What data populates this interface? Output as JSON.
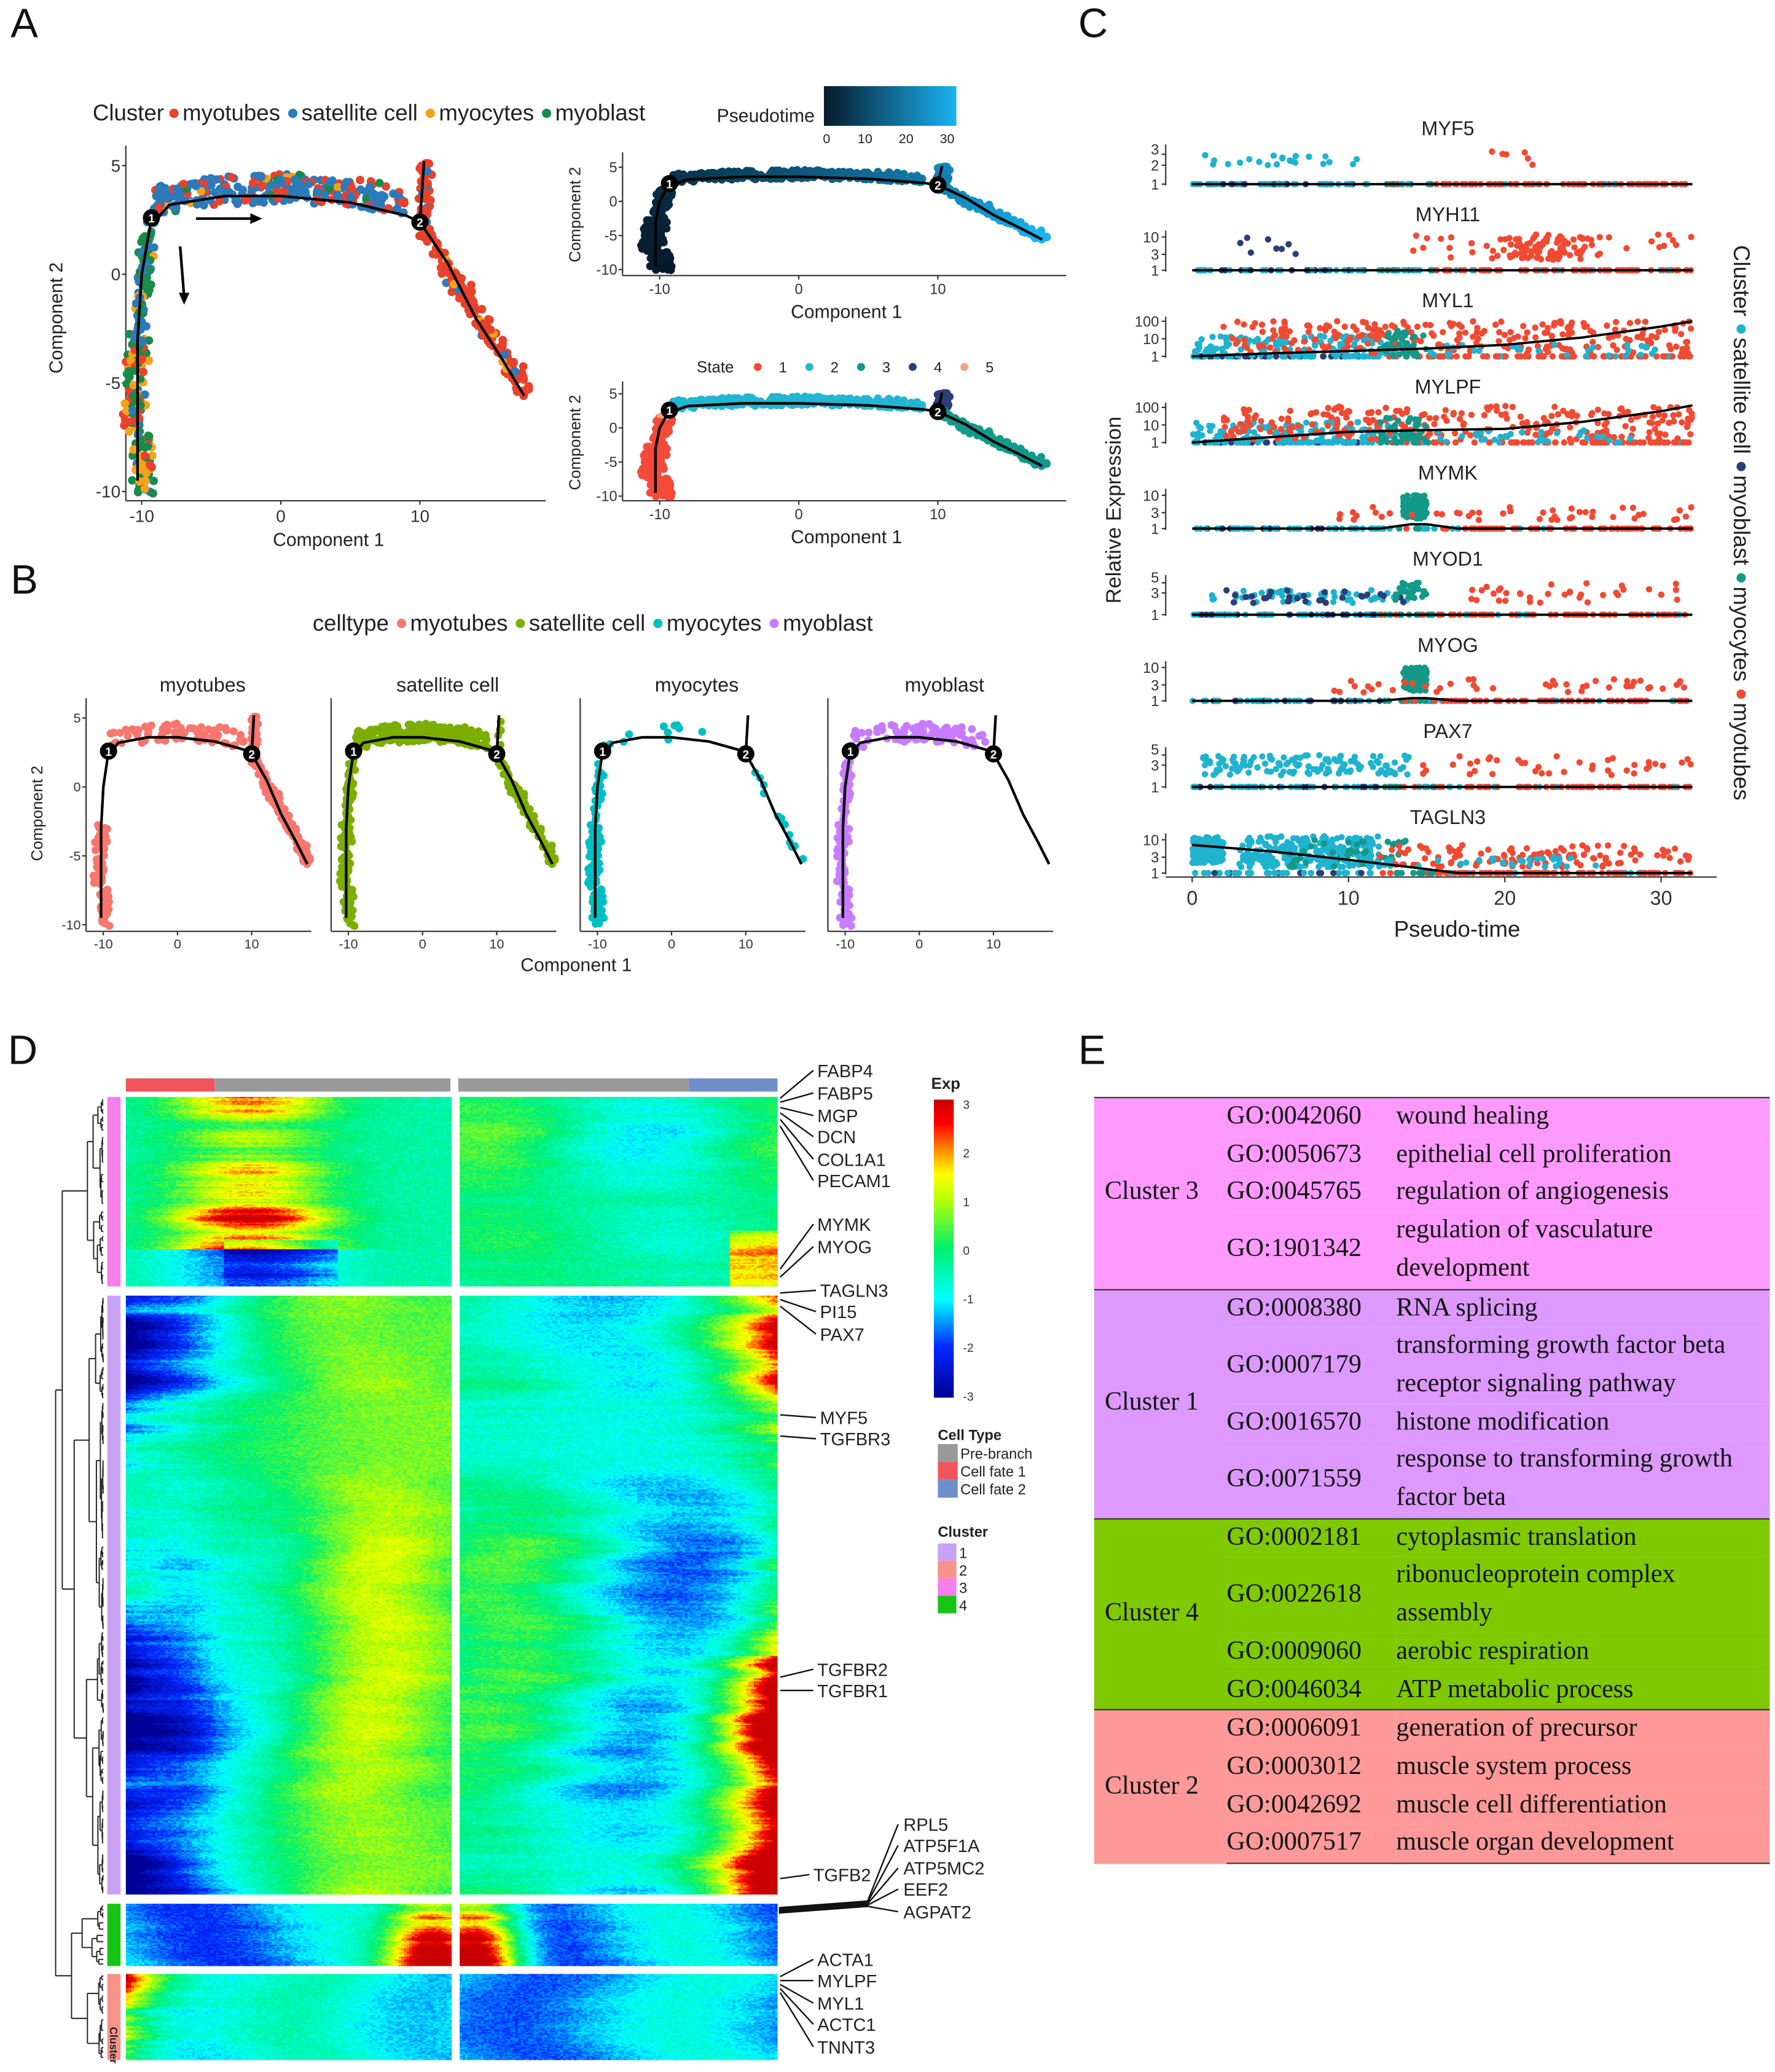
{
  "panels": {
    "A": "A",
    "B": "B",
    "C": "C",
    "D": "D",
    "E": "E"
  },
  "chart_data": [
    {
      "id": "A-cluster-trajectory",
      "type": "scatter",
      "legend_title": "Cluster",
      "legend": [
        {
          "label": "myotubes",
          "color": "#E8412C"
        },
        {
          "label": "satellite cell",
          "color": "#2B7BBA"
        },
        {
          "label": "myocytes",
          "color": "#F5A21B"
        },
        {
          "label": "myoblast",
          "color": "#1A8A4A"
        }
      ],
      "xlabel": "Component 1",
      "ylabel": "Component 2",
      "xticks": [
        -10,
        0,
        10
      ],
      "yticks": [
        5,
        0,
        -5,
        -10
      ],
      "xlim": [
        -12,
        19
      ],
      "ylim": [
        -10.2,
        5.5
      ],
      "branch_points": [
        "1",
        "2"
      ]
    },
    {
      "id": "A-pseudotime",
      "type": "scatter",
      "colorbar_title": "Pseudotime",
      "colorbar_ticks": [
        0,
        10,
        20,
        30
      ],
      "colorbar_colors": [
        "#061a2b",
        "#1ab3f2"
      ],
      "xlabel": "Component 1",
      "ylabel": "Component 2",
      "xticks": [
        -10,
        0,
        10
      ],
      "yticks": [
        5,
        0,
        -5,
        -10
      ],
      "branch_points": [
        "1",
        "2"
      ]
    },
    {
      "id": "A-state",
      "type": "scatter",
      "legend_title": "State",
      "legend": [
        {
          "label": "1",
          "color": "#F5493A"
        },
        {
          "label": "2",
          "color": "#22B6D2"
        },
        {
          "label": "3",
          "color": "#12998A"
        },
        {
          "label": "4",
          "color": "#2A3E78"
        },
        {
          "label": "5",
          "color": "#F6A08A"
        }
      ],
      "xlabel": "Component 1",
      "ylabel": "Component 2",
      "xticks": [
        -10,
        0,
        10
      ],
      "yticks": [
        5,
        0,
        -5,
        -10
      ],
      "branch_points": [
        "1",
        "2"
      ]
    },
    {
      "id": "B-celltype-facets",
      "type": "scatter",
      "legend_title": "celltype",
      "legend": [
        {
          "label": "myotubes",
          "color": "#F8766D"
        },
        {
          "label": "satellite cell",
          "color": "#7CAE00"
        },
        {
          "label": "myocytes",
          "color": "#00BFC4"
        },
        {
          "label": "myoblast",
          "color": "#C77CFF"
        }
      ],
      "facets": [
        "myotubes",
        "satellite cell",
        "myocytes",
        "myoblast"
      ],
      "xlabel": "Component 1",
      "ylabel": "Component 2",
      "xticks": [
        -10,
        0,
        10
      ],
      "yticks": [
        5,
        0,
        -5,
        -10
      ],
      "branch_points": [
        "1",
        "2"
      ]
    },
    {
      "id": "C-gene-pseudotime",
      "type": "scatter",
      "xlabel": "Pseudo-time",
      "ylabel": "Relative Expression",
      "xticks": [
        0,
        10,
        20,
        30
      ],
      "xlim": [
        -1.5,
        33
      ],
      "yscale": "log",
      "legend_title": "Cluster",
      "legend": [
        {
          "label": "satellite cell",
          "color": "#1FB3CF"
        },
        {
          "label": "myoblast",
          "color": "#2A3E78"
        },
        {
          "label": "myocytes",
          "color": "#12998A"
        },
        {
          "label": "myotubes",
          "color": "#F04A33"
        }
      ],
      "genes": [
        {
          "name": "MYF5",
          "yticks": [
            1,
            2,
            3
          ],
          "trend": [
            [
              0,
              1
            ],
            [
              32,
              1
            ]
          ]
        },
        {
          "name": "MYH11",
          "yticks": [
            1,
            3,
            10
          ],
          "trend": [
            [
              0,
              1
            ],
            [
              32,
              1
            ]
          ]
        },
        {
          "name": "MYL1",
          "yticks": [
            1,
            10,
            100
          ],
          "trend": [
            [
              0,
              1
            ],
            [
              5,
              1.5
            ],
            [
              10,
              2
            ],
            [
              15,
              2.8
            ],
            [
              20,
              4.5
            ],
            [
              25,
              12
            ],
            [
              30,
              50
            ],
            [
              32,
              100
            ]
          ]
        },
        {
          "name": "MYLPF",
          "yticks": [
            1,
            10,
            100
          ],
          "trend": [
            [
              0,
              1
            ],
            [
              5,
              2
            ],
            [
              10,
              4
            ],
            [
              15,
              5
            ],
            [
              20,
              6
            ],
            [
              25,
              15
            ],
            [
              30,
              60
            ],
            [
              32,
              130
            ]
          ]
        },
        {
          "name": "MYMK",
          "yticks": [
            1,
            3,
            10
          ],
          "trend": [
            [
              0,
              1
            ],
            [
              12,
              1
            ],
            [
              14,
              1.35
            ],
            [
              15,
              1.35
            ],
            [
              17,
              1
            ],
            [
              32,
              1
            ]
          ]
        },
        {
          "name": "MYOD1",
          "yticks": [
            1,
            3,
            5
          ],
          "trend": [
            [
              0,
              1
            ],
            [
              32,
              1
            ]
          ]
        },
        {
          "name": "MYOG",
          "yticks": [
            1,
            3,
            10
          ],
          "trend": [
            [
              0,
              1
            ],
            [
              12,
              1
            ],
            [
              14,
              1.2
            ],
            [
              15,
              1.2
            ],
            [
              17,
              1
            ],
            [
              32,
              1
            ]
          ]
        },
        {
          "name": "PAX7",
          "yticks": [
            1,
            3,
            5
          ],
          "trend": [
            [
              0,
              1
            ],
            [
              32,
              1
            ]
          ]
        },
        {
          "name": "TAGLN3",
          "yticks": [
            1,
            3,
            10
          ],
          "trend": [
            [
              0,
              7
            ],
            [
              5,
              4.5
            ],
            [
              10,
              2.5
            ],
            [
              14,
              1.5
            ],
            [
              17,
              1
            ],
            [
              32,
              1
            ]
          ]
        }
      ]
    },
    {
      "id": "D-branch-heatmap",
      "type": "heatmap",
      "colorbar_title": "Exp",
      "colorbar_ticks": [
        3,
        2,
        1,
        0,
        -1,
        -2,
        -3
      ],
      "celltype_title": "Cell Type",
      "celltypes": [
        {
          "label": "Pre-branch",
          "color": "#999999"
        },
        {
          "label": "Cell fate 1",
          "color": "#F2545B"
        },
        {
          "label": "Cell fate 2",
          "color": "#6F8FCB"
        }
      ],
      "cluster_title": "Cluster",
      "clusters": [
        {
          "label": "1",
          "color": "#C8A2F5"
        },
        {
          "label": "2",
          "color": "#F8938A"
        },
        {
          "label": "3",
          "color": "#F77FEA"
        },
        {
          "label": "4",
          "color": "#16C416"
        }
      ],
      "row_cluster_order": [
        "3",
        "1",
        "4",
        "2"
      ],
      "column_annotation": [
        "Cell fate 1",
        "Pre-branch",
        "Pre-branch",
        "Cell fate 2"
      ],
      "cluster_axis_label": "Cluster",
      "gene_labels": [
        "FABP4",
        "FABP5",
        "MGP",
        "DCN",
        "COL1A1",
        "PECAM1",
        "MYMK",
        "MYOG",
        "TAGLN3",
        "PI15",
        "PAX7",
        "MYF5",
        "TGFBR3",
        "TGFBR2",
        "TGFBR1",
        "RPL5",
        "ATP5F1A",
        "ATP5MC2",
        "EEF2",
        "AGPAT2",
        "TGFB2",
        "ACTA1",
        "MYLPF",
        "MYL1",
        "ACTC1",
        "TNNT3"
      ]
    }
  ],
  "table_E": {
    "rows": [
      {
        "cluster": "Cluster 3",
        "color": "#FF99FF",
        "terms": [
          {
            "go": "GO:0042060",
            "desc": "wound healing"
          },
          {
            "go": "GO:0050673",
            "desc": "epithelial cell proliferation"
          },
          {
            "go": "GO:0045765",
            "desc": "regulation of angiogenesis"
          },
          {
            "go": "GO:1901342",
            "desc": "regulation of vasculature development"
          }
        ]
      },
      {
        "cluster": "Cluster 1",
        "color": "#DD99FF",
        "terms": [
          {
            "go": "GO:0008380",
            "desc": "RNA splicing"
          },
          {
            "go": "GO:0007179",
            "desc": "transforming growth factor beta receptor signaling pathway"
          },
          {
            "go": "GO:0016570",
            "desc": "histone modification"
          },
          {
            "go": "GO:0071559",
            "desc": "response to transforming growth factor beta"
          }
        ]
      },
      {
        "cluster": "Cluster 4",
        "color": "#7FC900",
        "terms": [
          {
            "go": "GO:0002181",
            "desc": "cytoplasmic translation"
          },
          {
            "go": "GO:0022618",
            "desc": "ribonucleoprotein complex assembly"
          },
          {
            "go": "GO:0009060",
            "desc": "aerobic respiration"
          },
          {
            "go": "GO:0046034",
            "desc": "ATP metabolic process"
          }
        ]
      },
      {
        "cluster": "Cluster 2",
        "color": "#FF9999",
        "terms": [
          {
            "go": "GO:0006091",
            "desc": "generation of precursor"
          },
          {
            "go": "GO:0003012",
            "desc": "muscle system process"
          },
          {
            "go": "GO:0042692",
            "desc": "muscle cell differentiation"
          },
          {
            "go": "GO:0007517",
            "desc": "muscle organ development"
          }
        ]
      }
    ]
  }
}
